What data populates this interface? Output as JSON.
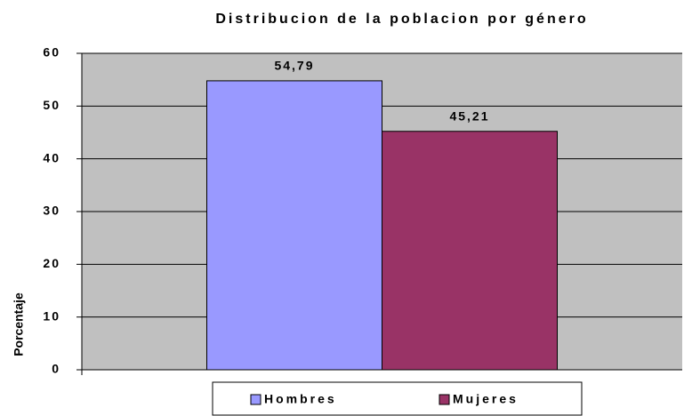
{
  "chart_data": {
    "type": "bar",
    "title": "Distribucion de la poblacion por género",
    "y_label": "Porcentaje",
    "categories": [
      null
    ],
    "series": [
      {
        "name": "Hombres",
        "color": "#9999ff",
        "values": [
          54.79
        ],
        "value_labels": [
          "54,79"
        ]
      },
      {
        "name": "Mujeres",
        "color": "#993366",
        "values": [
          45.21
        ],
        "value_labels": [
          "45,21"
        ]
      }
    ],
    "ylim": [
      0,
      60
    ],
    "yticks": [
      0,
      10,
      20,
      30,
      40,
      50,
      60
    ],
    "grid": true,
    "legend": "bottom"
  }
}
